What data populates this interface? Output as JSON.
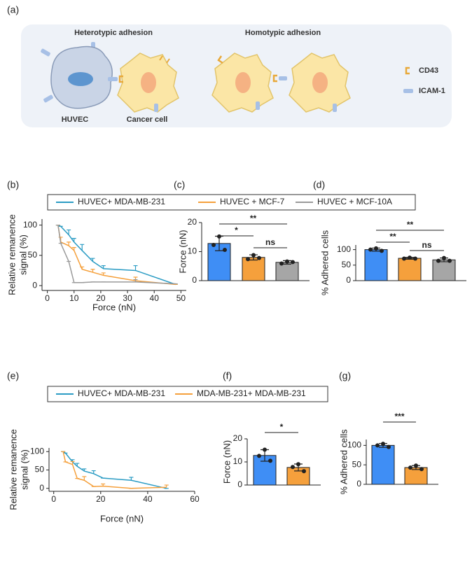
{
  "diagram": {
    "panel": "(a)",
    "titles": [
      "Heterotypic adhesion",
      "Homotypic adhesion"
    ],
    "cells": [
      "HUVEC",
      "Cancer cell"
    ],
    "legend": [
      "CD43",
      "ICAM-1"
    ]
  },
  "chart_data": [
    {
      "type": "line",
      "panel": "(b)",
      "xlabel": "Force (nN)",
      "ylabel": [
        "Relative remanence",
        "signal (%)"
      ],
      "x": [
        4,
        5,
        8,
        10,
        13,
        17,
        21,
        33,
        48
      ],
      "xlim": [
        -2,
        52
      ],
      "xticks": [
        0,
        10,
        20,
        30,
        40,
        50
      ],
      "ylim": [
        -8,
        110
      ],
      "yticks": [
        0,
        50,
        100
      ],
      "series": [
        {
          "name": "HUVEC+ MDA-MB-231",
          "color": "#2b9cc4",
          "values": [
            100,
            98,
            84,
            72,
            58,
            40,
            28,
            25,
            2
          ],
          "errors": [
            0,
            0,
            8,
            6,
            10,
            5,
            5,
            8,
            0
          ]
        },
        {
          "name": "HUVEC + MCF-7",
          "color": "#f5a03c",
          "values": [
            100,
            72,
            66,
            58,
            27,
            22,
            17,
            8,
            2
          ],
          "errors": [
            0,
            8,
            6,
            5,
            4,
            5,
            4,
            6,
            0
          ]
        },
        {
          "name": "HUVEC + MCF-10A",
          "color": "#9a9a9a",
          "values": [
            100,
            70,
            40,
            5,
            5,
            6,
            6,
            6,
            3
          ],
          "errors": [
            0,
            0,
            0,
            0,
            0,
            0,
            0,
            4,
            0
          ]
        }
      ]
    },
    {
      "type": "bar",
      "panel": "(c)",
      "ylabel": "Force (nN)",
      "categories": [
        null,
        null,
        null
      ],
      "colors": [
        "#3f8ef5",
        "#f5a03c",
        "#a6a6a6"
      ],
      "values": [
        12.8,
        8.0,
        6.3
      ],
      "errors": [
        2.5,
        0.9,
        0.6
      ],
      "points": [
        [
          15.2,
          12.3,
          10.6
        ],
        [
          8.8,
          7.4,
          7.8
        ],
        [
          6.6,
          5.9,
          6.4
        ]
      ],
      "ylim": [
        0,
        20
      ],
      "yticks": [
        0,
        10,
        20
      ],
      "comparisons": [
        {
          "pair": [
            0,
            2
          ],
          "label": "**"
        },
        {
          "pair": [
            0,
            1
          ],
          "label": "*"
        },
        {
          "pair": [
            1,
            2
          ],
          "label": "ns"
        }
      ]
    },
    {
      "type": "bar",
      "panel": "(d)",
      "ylabel": "% Adhered cells",
      "categories": [
        null,
        null,
        null
      ],
      "colors": [
        "#3f8ef5",
        "#f5a03c",
        "#a6a6a6"
      ],
      "values": [
        100,
        72,
        67
      ],
      "errors": [
        5,
        3,
        6
      ],
      "points": [
        [
          104,
          100,
          96
        ],
        [
          74,
          71,
          71
        ],
        [
          73,
          64,
          64
        ]
      ],
      "ylim": [
        0,
        115
      ],
      "yticks": [
        0,
        50,
        100
      ],
      "comparisons": [
        {
          "pair": [
            0,
            2
          ],
          "label": "**"
        },
        {
          "pair": [
            0,
            1
          ],
          "label": "**"
        },
        {
          "pair": [
            1,
            2
          ],
          "label": "ns"
        }
      ]
    },
    {
      "type": "line",
      "panel": "(e)",
      "xlabel": "Force (nN)",
      "ylabel": [
        "Relative remanence",
        "signal (%)"
      ],
      "x": [
        4,
        5,
        8,
        10,
        13,
        17,
        21,
        33,
        48
      ],
      "xlim": [
        -2,
        60
      ],
      "xticks": [
        0,
        20,
        40,
        60
      ],
      "ylim": [
        -8,
        110
      ],
      "yticks": [
        0,
        50,
        100
      ],
      "series": [
        {
          "name": "HUVEC+ MDA-MB-231",
          "color": "#2b9cc4",
          "values": [
            100,
            96,
            72,
            60,
            47,
            40,
            28,
            22,
            0
          ],
          "errors": [
            0,
            0,
            6,
            8,
            6,
            8,
            0,
            8,
            0
          ]
        },
        {
          "name": "MDA-MB-231+ MDA-MB-231",
          "color": "#f5a03c",
          "values": [
            100,
            72,
            65,
            27,
            22,
            5,
            6,
            0,
            3
          ],
          "errors": [
            0,
            0,
            8,
            0,
            10,
            0,
            6,
            0,
            6
          ]
        }
      ]
    },
    {
      "type": "bar",
      "panel": "(f)",
      "ylabel": "Force (nN)",
      "categories": [
        null,
        null
      ],
      "colors": [
        "#3f8ef5",
        "#f5a03c"
      ],
      "values": [
        12.8,
        7.6
      ],
      "errors": [
        2.5,
        1.5
      ],
      "points": [
        [
          15.3,
          12.6,
          10.5
        ],
        [
          9.0,
          7.8,
          6.0
        ]
      ],
      "ylim": [
        0,
        20
      ],
      "yticks": [
        0,
        10,
        20
      ],
      "comparisons": [
        {
          "pair": [
            0,
            1
          ],
          "label": "*"
        }
      ]
    },
    {
      "type": "bar",
      "panel": "(g)",
      "ylabel": "% Adhered cells",
      "categories": [
        null,
        null
      ],
      "colors": [
        "#3f8ef5",
        "#f5a03c"
      ],
      "values": [
        100,
        43
      ],
      "errors": [
        5,
        5
      ],
      "points": [
        [
          104,
          100,
          96
        ],
        [
          48,
          43,
          39
        ]
      ],
      "ylim": [
        0,
        115
      ],
      "yticks": [
        0,
        50,
        100
      ],
      "comparisons": [
        {
          "pair": [
            0,
            1
          ],
          "label": "***"
        }
      ]
    }
  ]
}
